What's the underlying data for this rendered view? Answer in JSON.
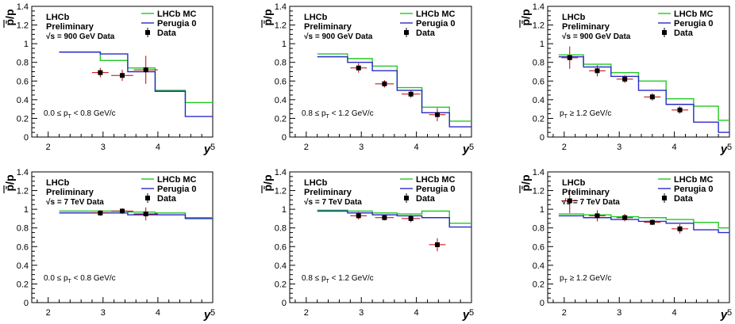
{
  "figure": {
    "ylabel_num": "p",
    "ylabel_den": "p",
    "xlabel": "y"
  },
  "chart_data": [
    {
      "type": "line",
      "panel": "900 GeV, 0.0<pT<0.8",
      "xlim": [
        1.7,
        5.0
      ],
      "ylim": [
        0,
        1.4
      ],
      "xticks": [
        2,
        3,
        4,
        5
      ],
      "yticks": [
        0,
        0.2,
        0.4,
        0.6,
        0.8,
        1,
        1.2,
        1.4
      ],
      "xlabel": "y",
      "ylabel": "p̄/p",
      "text": {
        "exp": "LHCb",
        "status": "Preliminary",
        "energy": "√s = 900 GeV Data",
        "cut": "0.0 ≤ pT < 0.8 GeV/c"
      },
      "legend": [
        "LHCb MC",
        "Perugia 0",
        "Data"
      ],
      "series": [
        {
          "name": "LHCb MC",
          "color": "#22c922",
          "edges": [
            2.2,
            2.95,
            3.45,
            3.95,
            4.5,
            5.0
          ],
          "values": [
            0.91,
            0.82,
            0.74,
            0.5,
            0.37
          ]
        },
        {
          "name": "Perugia 0",
          "color": "#2a2ac8",
          "edges": [
            2.2,
            2.95,
            3.45,
            3.95,
            4.5,
            5.0
          ],
          "values": [
            0.91,
            0.89,
            0.7,
            0.49,
            0.22
          ]
        },
        {
          "name": "Data",
          "color": "#c00000",
          "x": [
            2.95,
            3.35,
            3.78
          ],
          "xerr": [
            0.15,
            0.2,
            0.22
          ],
          "y": [
            0.69,
            0.66,
            0.72
          ],
          "yerr": [
            0.05,
            0.06,
            0.15
          ]
        }
      ]
    },
    {
      "type": "line",
      "panel": "900 GeV, 0.8<pT<1.2",
      "xlim": [
        1.7,
        5.0
      ],
      "ylim": [
        0,
        1.4
      ],
      "xticks": [
        2,
        3,
        4,
        5
      ],
      "yticks": [
        0,
        0.2,
        0.4,
        0.6,
        0.8,
        1,
        1.2,
        1.4
      ],
      "xlabel": "y",
      "ylabel": "p̄/p",
      "text": {
        "exp": "LHCb",
        "status": "Preliminary",
        "energy": "√s = 900 GeV Data",
        "cut": "0.8 ≤ pT < 1.2 GeV/c"
      },
      "legend": [
        "LHCb MC",
        "Perugia 0",
        "Data"
      ],
      "series": [
        {
          "name": "LHCb MC",
          "color": "#22c922",
          "edges": [
            2.2,
            2.75,
            3.2,
            3.65,
            4.1,
            4.6,
            5.0
          ],
          "values": [
            0.89,
            0.84,
            0.76,
            0.53,
            0.32,
            0.17
          ]
        },
        {
          "name": "Perugia 0",
          "color": "#2a2ac8",
          "edges": [
            2.2,
            2.75,
            3.2,
            3.65,
            4.1,
            4.6,
            5.0
          ],
          "values": [
            0.86,
            0.8,
            0.71,
            0.5,
            0.26,
            0.11
          ]
        },
        {
          "name": "Data",
          "color": "#c00000",
          "x": [
            2.95,
            3.42,
            3.9,
            4.38
          ],
          "xerr": [
            0.15,
            0.17,
            0.17,
            0.15
          ],
          "y": [
            0.74,
            0.57,
            0.46,
            0.24
          ],
          "yerr": [
            0.05,
            0.04,
            0.04,
            0.07
          ]
        }
      ]
    },
    {
      "type": "line",
      "panel": "900 GeV, pT>1.2",
      "xlim": [
        1.7,
        5.0
      ],
      "ylim": [
        0,
        1.4
      ],
      "xticks": [
        2,
        3,
        4,
        5
      ],
      "yticks": [
        0,
        0.2,
        0.4,
        0.6,
        0.8,
        1,
        1.2,
        1.4
      ],
      "xlabel": "y",
      "ylabel": "p̄/p",
      "text": {
        "exp": "LHCb",
        "status": "Preliminary",
        "energy": "√s = 900 GeV Data",
        "cut": "pT ≥ 1.2 GeV/c"
      },
      "legend": [
        "LHCb MC",
        "Perugia 0",
        "Data"
      ],
      "series": [
        {
          "name": "LHCb MC",
          "color": "#22c922",
          "edges": [
            1.9,
            2.35,
            2.85,
            3.35,
            3.85,
            4.35,
            4.8,
            5.0
          ],
          "values": [
            0.88,
            0.78,
            0.69,
            0.6,
            0.41,
            0.33,
            0.18
          ]
        },
        {
          "name": "Perugia 0",
          "color": "#2a2ac8",
          "edges": [
            1.9,
            2.35,
            2.85,
            3.35,
            3.85,
            4.35,
            4.8,
            5.0
          ],
          "values": [
            0.86,
            0.75,
            0.65,
            0.5,
            0.35,
            0.16,
            0.05
          ]
        },
        {
          "name": "Data",
          "color": "#c00000",
          "x": [
            2.1,
            2.6,
            3.1,
            3.6,
            4.1
          ],
          "xerr": [
            0.15,
            0.15,
            0.15,
            0.15,
            0.15
          ],
          "y": [
            0.85,
            0.71,
            0.62,
            0.43,
            0.29
          ],
          "yerr": [
            0.12,
            0.06,
            0.04,
            0.04,
            0.04
          ]
        }
      ]
    },
    {
      "type": "line",
      "panel": "7 TeV, 0.0<pT<0.8",
      "xlim": [
        1.7,
        5.0
      ],
      "ylim": [
        0,
        1.4
      ],
      "xticks": [
        2,
        3,
        4,
        5
      ],
      "yticks": [
        0,
        0.2,
        0.4,
        0.6,
        0.8,
        1,
        1.2,
        1.4
      ],
      "xlabel": "y",
      "ylabel": "p̄/p",
      "text": {
        "exp": "LHCb",
        "status": "Preliminary",
        "energy": "√s = 7 TeV Data",
        "cut": "0.0 ≤ pT < 0.8 GeV/c"
      },
      "legend": [
        "LHCb MC",
        "Perugia 0",
        "Data"
      ],
      "series": [
        {
          "name": "LHCb MC",
          "color": "#22c922",
          "edges": [
            2.2,
            2.95,
            3.45,
            3.95,
            4.5,
            5.0
          ],
          "values": [
            0.98,
            0.98,
            0.97,
            0.96,
            0.91
          ]
        },
        {
          "name": "Perugia 0",
          "color": "#2a2ac8",
          "edges": [
            2.2,
            2.95,
            3.45,
            3.95,
            4.5,
            5.0
          ],
          "values": [
            0.96,
            0.96,
            0.94,
            0.94,
            0.9
          ]
        },
        {
          "name": "Data",
          "color": "#c00000",
          "x": [
            2.95,
            3.35,
            3.78
          ],
          "xerr": [
            0.15,
            0.2,
            0.22
          ],
          "y": [
            0.96,
            0.98,
            0.95
          ],
          "yerr": [
            0.03,
            0.03,
            0.07
          ]
        }
      ]
    },
    {
      "type": "line",
      "panel": "7 TeV, 0.8<pT<1.2",
      "xlim": [
        1.7,
        5.0
      ],
      "ylim": [
        0,
        1.4
      ],
      "xticks": [
        2,
        3,
        4,
        5
      ],
      "yticks": [
        0,
        0.2,
        0.4,
        0.6,
        0.8,
        1,
        1.2,
        1.4
      ],
      "xlabel": "y",
      "ylabel": "p̄/p",
      "text": {
        "exp": "LHCb",
        "status": "Preliminary",
        "energy": "√s = 7 TeV Data",
        "cut": "0.8 ≤ pT < 1.2 GeV/c"
      },
      "legend": [
        "LHCb MC",
        "Perugia 0",
        "Data"
      ],
      "series": [
        {
          "name": "LHCb MC",
          "color": "#22c922",
          "edges": [
            2.2,
            2.75,
            3.2,
            3.65,
            4.1,
            4.6,
            5.0
          ],
          "values": [
            0.99,
            0.98,
            0.96,
            0.95,
            0.98,
            0.85
          ]
        },
        {
          "name": "Perugia 0",
          "color": "#2a2ac8",
          "edges": [
            2.2,
            2.75,
            3.2,
            3.65,
            4.1,
            4.6,
            5.0
          ],
          "values": [
            0.98,
            0.96,
            0.94,
            0.93,
            0.91,
            0.81
          ]
        },
        {
          "name": "Data",
          "color": "#c00000",
          "x": [
            2.95,
            3.42,
            3.9,
            4.38
          ],
          "xerr": [
            0.15,
            0.17,
            0.17,
            0.15
          ],
          "y": [
            0.93,
            0.91,
            0.9,
            0.62
          ],
          "yerr": [
            0.04,
            0.03,
            0.04,
            0.07
          ]
        }
      ]
    },
    {
      "type": "line",
      "panel": "7 TeV, pT>1.2",
      "xlim": [
        1.7,
        5.0
      ],
      "ylim": [
        0,
        1.4
      ],
      "xticks": [
        2,
        3,
        4,
        5
      ],
      "yticks": [
        0,
        0.2,
        0.4,
        0.6,
        0.8,
        1,
        1.2,
        1.4
      ],
      "xlabel": "y",
      "ylabel": "p̄/p",
      "text": {
        "exp": "LHCb",
        "status": "Preliminary",
        "energy": "√s = 7 TeV Data",
        "cut": "pT ≥ 1.2 GeV/c"
      },
      "legend": [
        "LHCb MC",
        "Perugia 0",
        "Data"
      ],
      "series": [
        {
          "name": "LHCb MC",
          "color": "#22c922",
          "edges": [
            1.9,
            2.35,
            2.85,
            3.35,
            3.85,
            4.35,
            4.8,
            5.0
          ],
          "values": [
            0.95,
            0.94,
            0.92,
            0.91,
            0.89,
            0.86,
            0.8
          ]
        },
        {
          "name": "Perugia 0",
          "color": "#2a2ac8",
          "edges": [
            1.9,
            2.35,
            2.85,
            3.35,
            3.85,
            4.35,
            4.8,
            5.0
          ],
          "values": [
            0.93,
            0.91,
            0.89,
            0.87,
            0.85,
            0.78,
            0.75
          ]
        },
        {
          "name": "Data",
          "color": "#c00000",
          "x": [
            2.1,
            2.6,
            3.1,
            3.6,
            4.1
          ],
          "xerr": [
            0.15,
            0.15,
            0.15,
            0.15,
            0.15
          ],
          "y": [
            1.09,
            0.93,
            0.91,
            0.86,
            0.79
          ],
          "yerr": [
            0.13,
            0.06,
            0.04,
            0.03,
            0.05
          ]
        }
      ]
    }
  ]
}
